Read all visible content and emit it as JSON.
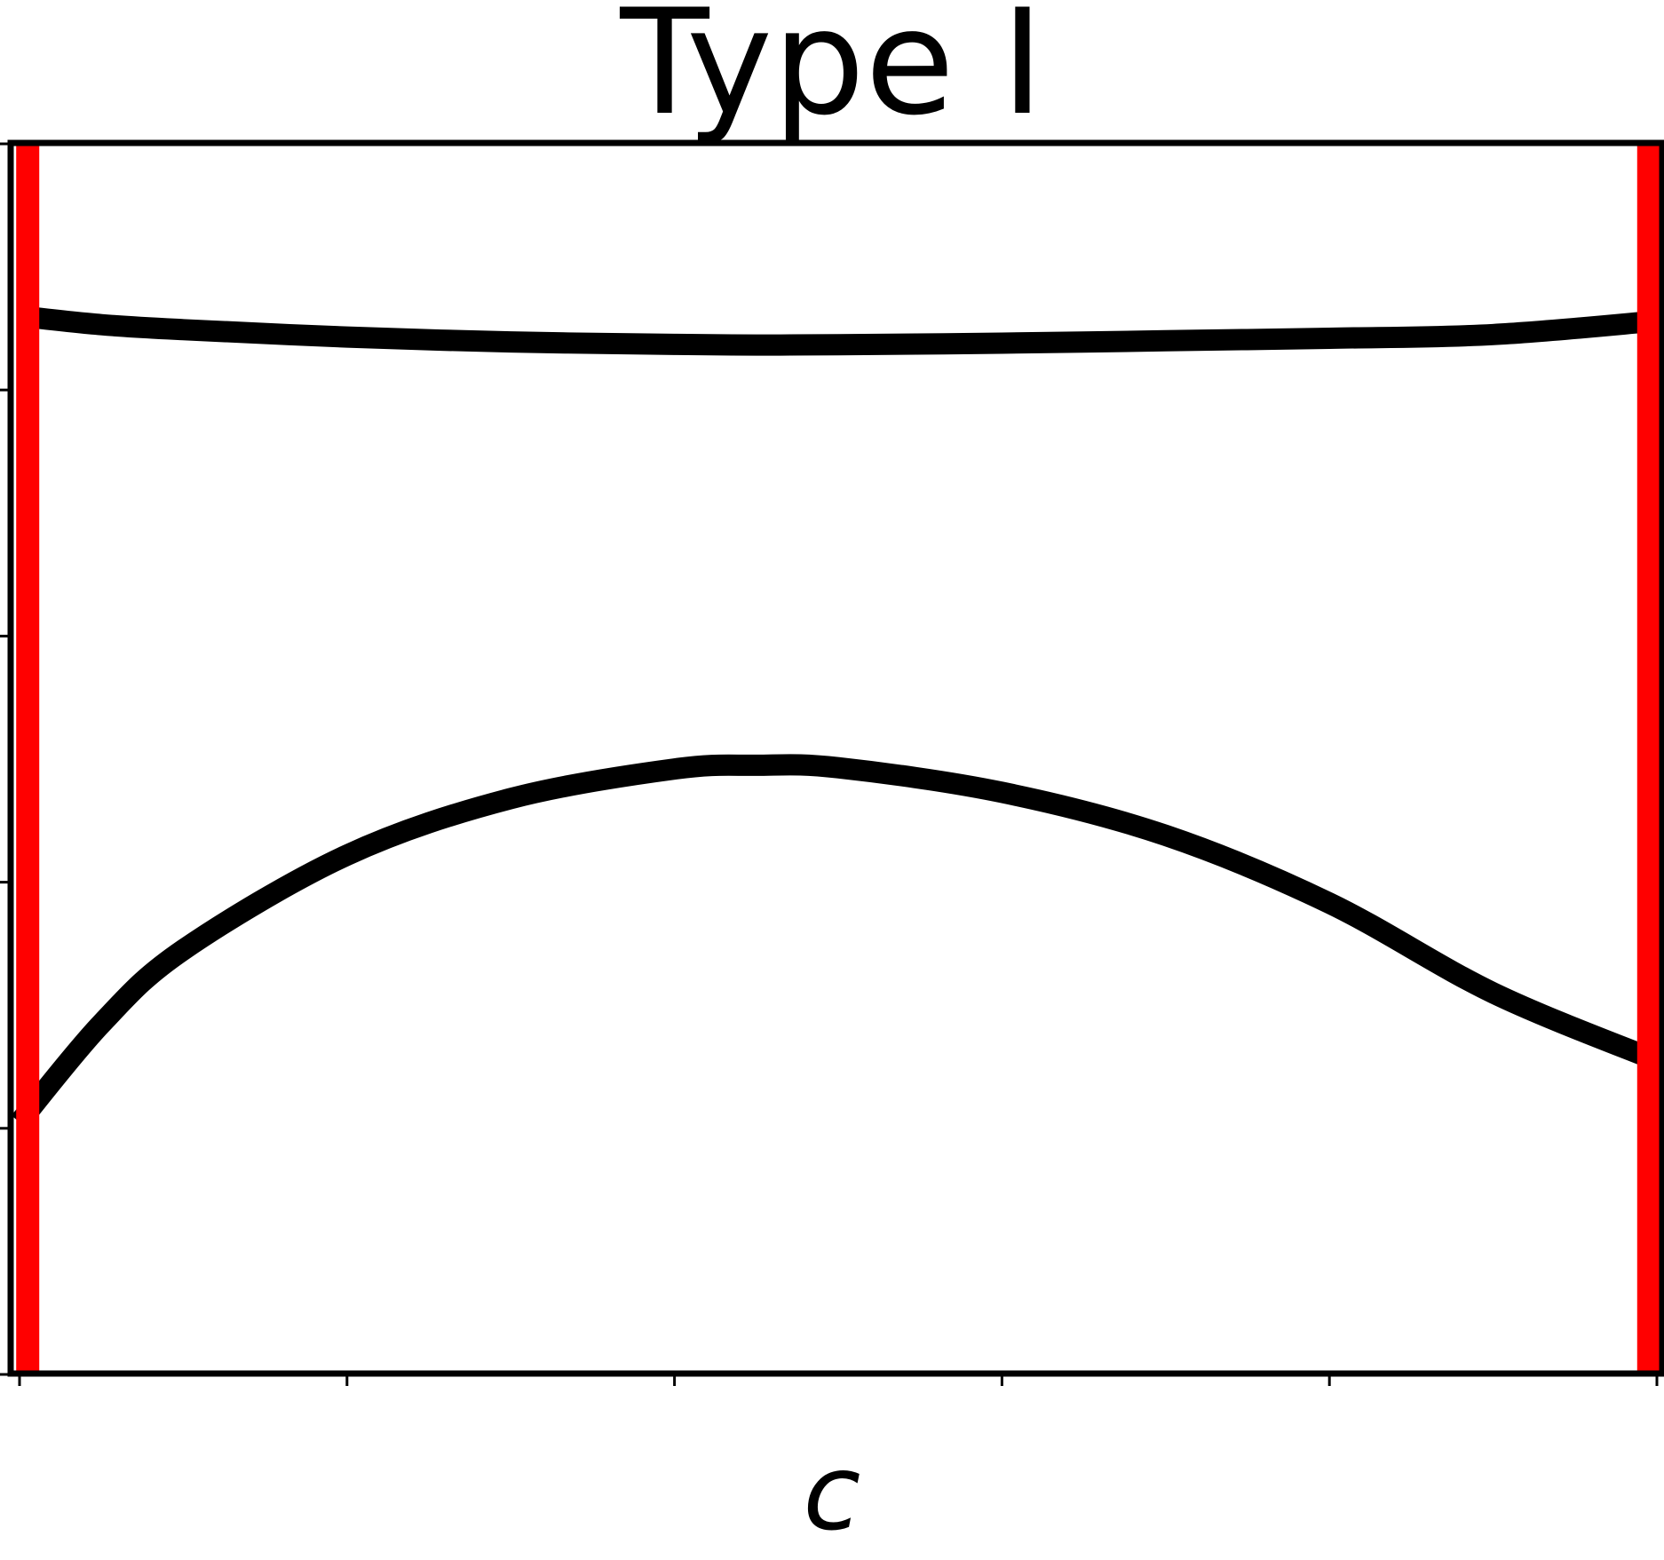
{
  "chart_data": {
    "type": "line",
    "title": "Type I",
    "xlabel": "c",
    "ylabel": "",
    "xlim": [
      0,
      1
    ],
    "ylim": [
      0,
      1
    ],
    "x_ticks": [
      0,
      0.2,
      0.4,
      0.6,
      0.8,
      1.0
    ],
    "y_ticks": [
      0,
      0.2,
      0.4,
      0.6,
      0.8,
      1.0
    ],
    "tick_labels_visible": false,
    "grid": false,
    "series": [
      {
        "color": "#000000",
        "x": [
          0.0,
          0.05,
          0.1,
          0.2,
          0.3,
          0.4,
          0.45,
          0.5,
          0.6,
          0.7,
          0.8,
          0.9,
          1.0
        ],
        "y": [
          0.86,
          0.853,
          0.849,
          0.843,
          0.839,
          0.837,
          0.8365,
          0.8368,
          0.838,
          0.84,
          0.842,
          0.845,
          0.856
        ]
      },
      {
        "color": "#000000",
        "x": [
          0.0,
          0.05,
          0.1,
          0.2,
          0.3,
          0.4,
          0.45,
          0.5,
          0.6,
          0.7,
          0.8,
          0.9,
          1.0
        ],
        "y": [
          0.205,
          0.285,
          0.345,
          0.422,
          0.468,
          0.492,
          0.495,
          0.493,
          0.473,
          0.438,
          0.383,
          0.31,
          0.255
        ]
      }
    ],
    "vertical_lines": [
      {
        "x": 0.005,
        "color": "#ff0000"
      },
      {
        "x": 0.995,
        "color": "#ff0000"
      }
    ]
  }
}
